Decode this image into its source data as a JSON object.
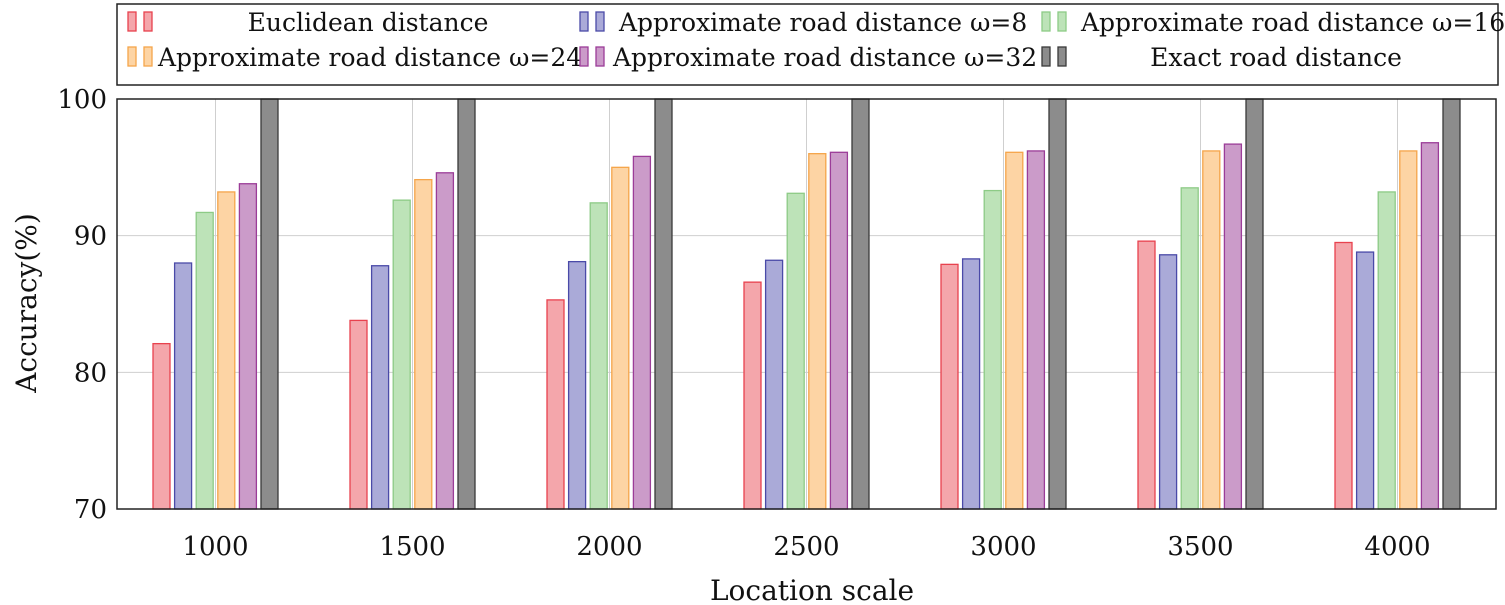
{
  "chart_data": {
    "type": "bar",
    "title": "",
    "xlabel": "Location scale",
    "ylabel": "Accuracy(%)",
    "ylim": [
      70,
      100
    ],
    "yticks": [
      70,
      80,
      90,
      100
    ],
    "grid": true,
    "legend_position": "top",
    "categories": [
      "1000",
      "1500",
      "2000",
      "2500",
      "3000",
      "3500",
      "4000"
    ],
    "series": [
      {
        "name": "Euclidean distance",
        "fill": "#f4a6ab",
        "stroke": "#e8424e",
        "values": [
          82.1,
          83.8,
          85.3,
          86.6,
          87.9,
          89.6,
          89.5
        ]
      },
      {
        "name": "Approximate road distance ω=8",
        "fill": "#aaaad8",
        "stroke": "#4a4aa8",
        "values": [
          88.0,
          87.8,
          88.1,
          88.2,
          88.3,
          88.6,
          88.8
        ]
      },
      {
        "name": "Approximate road distance ω=16",
        "fill": "#bde3b8",
        "stroke": "#8dcb86",
        "values": [
          91.7,
          92.6,
          92.4,
          93.1,
          93.3,
          93.5,
          93.2
        ]
      },
      {
        "name": "Approximate road distance ω=24",
        "fill": "#fdd4a4",
        "stroke": "#f5a54a",
        "values": [
          93.2,
          94.1,
          95.0,
          96.0,
          96.1,
          96.2,
          96.2
        ]
      },
      {
        "name": "Approximate road distance ω=32",
        "fill": "#cb9bc9",
        "stroke": "#9b3c98",
        "values": [
          93.8,
          94.6,
          95.8,
          96.1,
          96.2,
          96.7,
          96.8
        ]
      },
      {
        "name": "Exact road distance",
        "fill": "#8c8c8c",
        "stroke": "#3a3a3a",
        "values": [
          100,
          100,
          100,
          100,
          100,
          100,
          100
        ]
      }
    ],
    "legend_labels": [
      "Euclidean distance",
      "Approximate road distance ω=8",
      "Approximate road distance ω=16",
      "Approximate road distance ω=24",
      "Approximate road distance ω=32",
      "Exact road distance"
    ]
  }
}
